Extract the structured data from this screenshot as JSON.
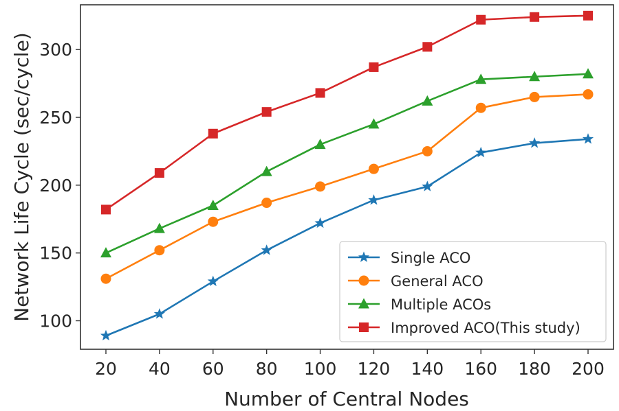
{
  "chart_data": {
    "type": "line",
    "title": "",
    "xlabel": "Number of Central Nodes",
    "ylabel": "Network Life Cycle (sec/cycle)",
    "x": [
      20,
      40,
      60,
      80,
      100,
      120,
      140,
      160,
      180,
      200
    ],
    "x_ticks": [
      20,
      40,
      60,
      80,
      100,
      120,
      140,
      160,
      180,
      200
    ],
    "y_ticks": [
      100,
      150,
      200,
      250,
      300
    ],
    "xlim": [
      10.5,
      209.5
    ],
    "ylim": [
      79,
      333
    ],
    "grid": false,
    "legend_position": "lower-right",
    "series": [
      {
        "name": "Single ACO",
        "color": "#1f77b4",
        "marker": "star",
        "values": [
          89,
          105,
          129,
          152,
          172,
          189,
          199,
          224,
          231,
          234
        ]
      },
      {
        "name": "General ACO",
        "color": "#ff7f0e",
        "marker": "circle",
        "values": [
          131,
          152,
          173,
          187,
          199,
          212,
          225,
          257,
          265,
          267
        ]
      },
      {
        "name": "Multiple ACOs",
        "color": "#2ca02c",
        "marker": "triangle",
        "values": [
          150,
          168,
          185,
          210,
          230,
          245,
          262,
          278,
          280,
          282
        ]
      },
      {
        "name": "Improved ACO(This study)",
        "color": "#d62728",
        "marker": "square",
        "values": [
          182,
          209,
          238,
          254,
          268,
          287,
          302,
          322,
          324,
          325
        ]
      }
    ]
  }
}
